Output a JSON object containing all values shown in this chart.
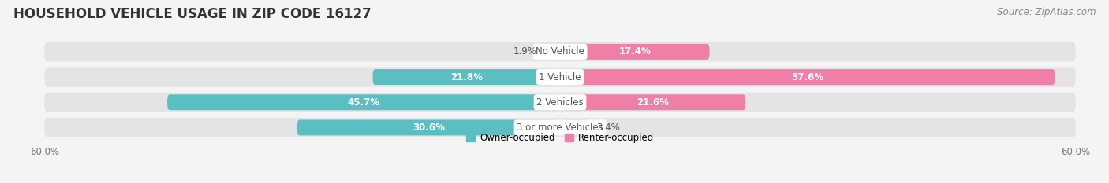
{
  "title": "HOUSEHOLD VEHICLE USAGE IN ZIP CODE 16127",
  "source": "Source: ZipAtlas.com",
  "categories": [
    "No Vehicle",
    "1 Vehicle",
    "2 Vehicles",
    "3 or more Vehicles"
  ],
  "owner_values": [
    1.9,
    21.8,
    45.7,
    30.6
  ],
  "renter_values": [
    17.4,
    57.6,
    21.6,
    3.4
  ],
  "owner_color": "#5bbfc2",
  "renter_color": "#f07fa8",
  "renter_color_light": "#f5afc8",
  "owner_color_light": "#8dd5d8",
  "bar_height": 0.62,
  "bg_bar_height": 0.78,
  "xlim": [
    -60,
    60
  ],
  "background_color": "#f4f4f4",
  "bar_bg_color": "#e4e4e4",
  "title_fontsize": 12,
  "source_fontsize": 8.5,
  "label_fontsize": 8.5,
  "category_fontsize": 8.5,
  "tick_label_fontsize": 8.5,
  "tick_label_color": "#777777",
  "title_color": "#333333",
  "source_color": "#888888",
  "label_outside_color": "#555555",
  "label_inside_color": "#ffffff",
  "category_text_color": "#555555"
}
